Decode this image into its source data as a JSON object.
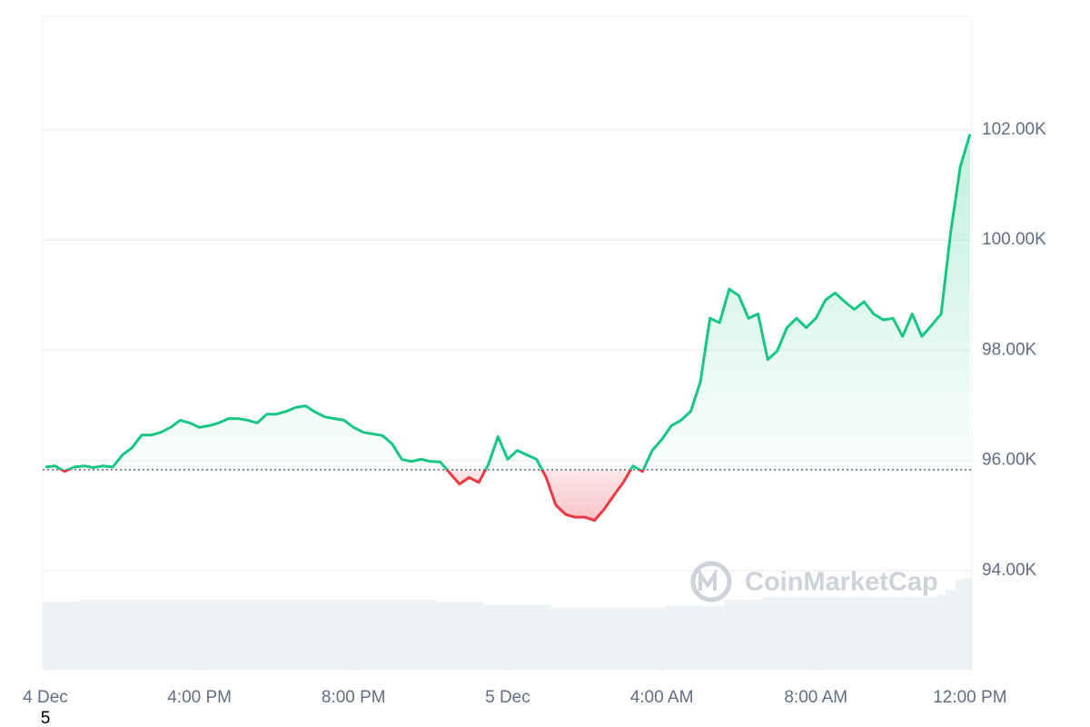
{
  "chart_data": {
    "type": "line",
    "x": [
      12,
      12.25,
      12.5,
      12.75,
      13,
      13.25,
      13.5,
      13.75,
      14,
      14.25,
      14.5,
      14.75,
      15,
      15.25,
      15.5,
      15.75,
      16,
      16.25,
      16.5,
      16.75,
      17,
      17.25,
      17.5,
      17.75,
      18,
      18.25,
      18.5,
      18.75,
      19,
      19.25,
      19.5,
      19.75,
      20,
      20.25,
      20.5,
      20.75,
      21,
      21.25,
      21.5,
      21.75,
      22,
      22.25,
      22.5,
      22.75,
      23,
      23.25,
      23.5,
      23.75,
      24,
      24.25,
      24.5,
      24.75,
      25,
      25.25,
      25.5,
      25.75,
      26,
      26.25,
      26.5,
      26.75,
      27,
      27.25,
      27.5,
      27.75,
      28,
      28.25,
      28.5,
      28.75,
      29,
      29.25,
      29.5,
      29.75,
      30,
      30.25,
      30.5,
      30.75,
      31,
      31.25,
      31.5,
      31.75,
      32,
      32.25,
      32.5,
      32.75,
      33,
      33.25,
      33.5,
      33.75,
      34,
      34.25,
      34.5,
      34.75,
      35,
      35.25,
      35.5,
      35.75,
      36
    ],
    "values": [
      95880,
      95900,
      95800,
      95880,
      95900,
      95870,
      95900,
      95880,
      96100,
      96230,
      96460,
      96460,
      96510,
      96600,
      96730,
      96680,
      96600,
      96630,
      96680,
      96760,
      96760,
      96730,
      96680,
      96840,
      96840,
      96890,
      96960,
      96990,
      96880,
      96790,
      96760,
      96730,
      96600,
      96510,
      96480,
      96450,
      96300,
      96020,
      95980,
      96020,
      95980,
      95970,
      95770,
      95570,
      95690,
      95600,
      95930,
      96430,
      96020,
      96180,
      96100,
      96020,
      95690,
      95190,
      95020,
      94970,
      94970,
      94910,
      95110,
      95360,
      95600,
      95900,
      95800,
      96180,
      96380,
      96630,
      96730,
      96890,
      97420,
      98580,
      98500,
      99110,
      98990,
      98580,
      98660,
      97830,
      97990,
      98410,
      98580,
      98410,
      98580,
      98910,
      99040,
      98880,
      98740,
      98880,
      98660,
      98550,
      98580,
      98250,
      98660,
      98250,
      98450,
      98660,
      100150,
      101340,
      101920
    ],
    "color": "#16c784",
    "negative_color": "#ea3943",
    "baseline": 95830,
    "volume": {
      "values": [
        68,
        68,
        68,
        68,
        70,
        70,
        70,
        70,
        70,
        70,
        70,
        70,
        70,
        70,
        70,
        70,
        70,
        70,
        70,
        70,
        70,
        70,
        70,
        70,
        70,
        70,
        70,
        70,
        70,
        70,
        70,
        70,
        70,
        70,
        70,
        70,
        70,
        70,
        70,
        70,
        70,
        68,
        68,
        68,
        68,
        68,
        65,
        65,
        65,
        65,
        65,
        65,
        65,
        62,
        62,
        62,
        62,
        62,
        62,
        62,
        62,
        62,
        62,
        62,
        62,
        64,
        64,
        64,
        64,
        64,
        64,
        70,
        70,
        70,
        70,
        73,
        73,
        73,
        73,
        73,
        73,
        73,
        73,
        73,
        73,
        73,
        73,
        73,
        73,
        73,
        73,
        73,
        73,
        75,
        80,
        90,
        92
      ],
      "color": "#eff2f5",
      "ylim": [
        0,
        100
      ]
    },
    "xlim": [
      11.93,
      36.05
    ],
    "xticks": [
      {
        "value": 12,
        "label": "4 Dec"
      },
      {
        "value": 16,
        "label": "4:00 PM"
      },
      {
        "value": 20,
        "label": "8:00 PM"
      },
      {
        "value": 24,
        "label": "5 Dec"
      },
      {
        "value": 28,
        "label": "4:00 AM"
      },
      {
        "value": 32,
        "label": "8:00 AM"
      },
      {
        "value": 36,
        "label": "12:00 PM"
      }
    ],
    "ylim": [
      92200,
      104060
    ],
    "yticks": [
      {
        "value": 94000,
        "label": "94.00K"
      },
      {
        "value": 96000,
        "label": "96.00K"
      },
      {
        "value": 98000,
        "label": "98.00K"
      },
      {
        "value": 100000,
        "label": "100.00K"
      },
      {
        "value": 102000,
        "label": "102.00K"
      }
    ],
    "grid": true,
    "watermark": "CoinMarketCap",
    "footnote": "5"
  }
}
